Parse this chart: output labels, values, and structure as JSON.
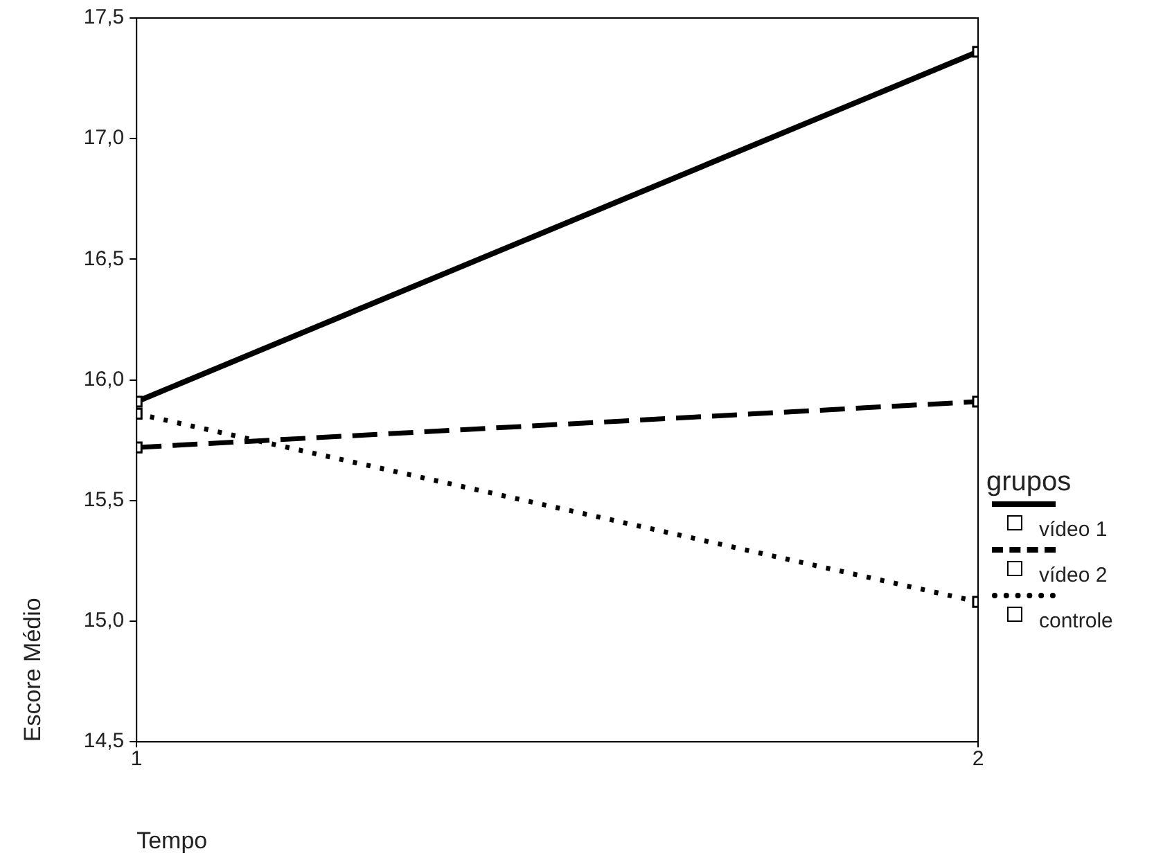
{
  "chart_data": {
    "type": "line",
    "xlabel": "Tempo",
    "ylabel": "Escore Médio",
    "legend_title": "grupos",
    "x": [
      1,
      2
    ],
    "xlim": [
      1,
      2
    ],
    "xticks": [
      1,
      2
    ],
    "ylim": [
      14.5,
      17.5
    ],
    "yticks": [
      {
        "value": 14.5,
        "label": "14,5"
      },
      {
        "value": 15,
        "label": "15,0"
      },
      {
        "value": 15.5,
        "label": "15,5"
      },
      {
        "value": 16,
        "label": "16,0"
      },
      {
        "value": 16.5,
        "label": "16,5"
      },
      {
        "value": 17,
        "label": "17,0"
      },
      {
        "value": 17.5,
        "label": "17,5"
      }
    ],
    "grid": false,
    "legend": "right",
    "marker": "square",
    "series": [
      {
        "name": "vídeo 1",
        "color": "#000000",
        "line_style": "solid",
        "values": [
          15.91,
          17.36
        ]
      },
      {
        "name": "vídeo 2",
        "color": "#000000",
        "line_style": "dashed",
        "values": [
          15.72,
          15.91
        ]
      },
      {
        "name": "controle",
        "color": "#000000",
        "line_style": "dotted",
        "values": [
          15.86,
          15.08
        ]
      }
    ]
  }
}
